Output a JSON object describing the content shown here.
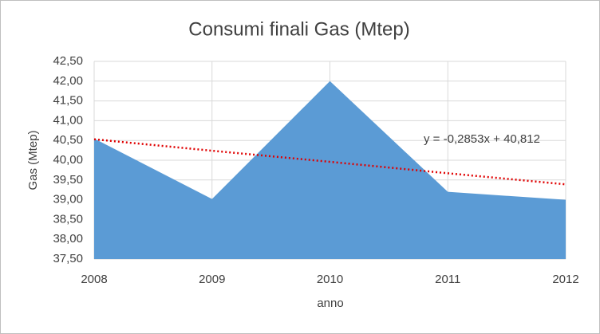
{
  "chart_data": {
    "type": "area",
    "title": "Consumi finali Gas (Mtep)",
    "x_label": "anno",
    "y_label": "Gas (Mtep)",
    "categories": [
      "2008",
      "2009",
      "2010",
      "2011",
      "2012"
    ],
    "series": [
      {
        "name": "Gas",
        "color": "#5b9bd5",
        "values": [
          40.55,
          39.02,
          42.0,
          39.2,
          39.0
        ]
      }
    ],
    "trendline": {
      "label": "y = -0,2853x + 40,812",
      "color": "#e00000",
      "values": [
        40.53,
        40.24,
        39.96,
        39.67,
        39.39
      ]
    },
    "ylim": [
      37.5,
      42.5
    ],
    "yticks": [
      {
        "value": 37.5,
        "label": "37,50"
      },
      {
        "value": 38,
        "label": "38,00"
      },
      {
        "value": 38.5,
        "label": "38,50"
      },
      {
        "value": 39,
        "label": "39,00"
      },
      {
        "value": 39.5,
        "label": "39,50"
      },
      {
        "value": 40,
        "label": "40,00"
      },
      {
        "value": 40.5,
        "label": "40,50"
      },
      {
        "value": 41,
        "label": "41,00"
      },
      {
        "value": 41.5,
        "label": "41,50"
      },
      {
        "value": 42,
        "label": "42,00"
      },
      {
        "value": 42.5,
        "label": "42,50"
      }
    ],
    "grid": true
  }
}
